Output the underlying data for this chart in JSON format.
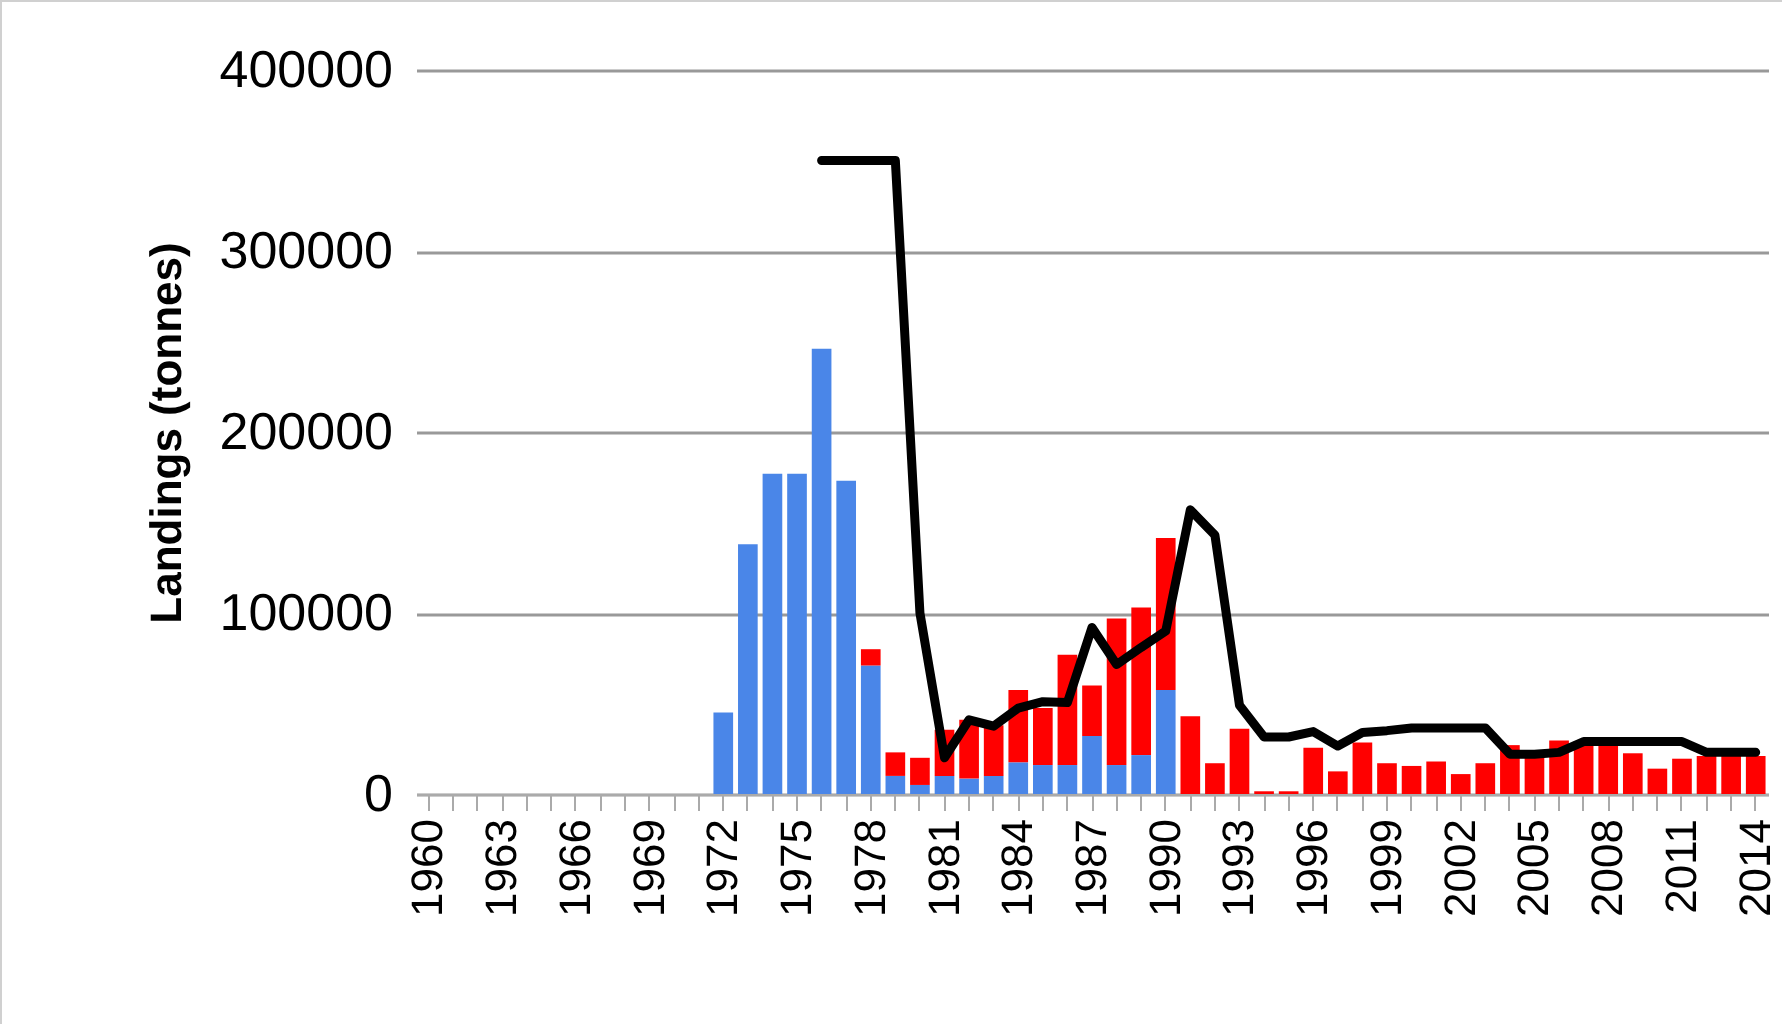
{
  "chart_data": {
    "type": "bar",
    "ylabel": "Landings (tonnes)",
    "stacked": true,
    "grid": "y",
    "legend": false,
    "categories": [
      "1960",
      null,
      null,
      "1963",
      null,
      null,
      "1966",
      null,
      null,
      "1969",
      null,
      null,
      "1972",
      null,
      null,
      "1975",
      null,
      null,
      "1978",
      null,
      null,
      "1981",
      null,
      null,
      "1984",
      null,
      null,
      "1987",
      null,
      null,
      "1990",
      null,
      null,
      "1993",
      null,
      null,
      "1996",
      null,
      null,
      "1999",
      null,
      null,
      "2002",
      null,
      null,
      "2005",
      null,
      null,
      "2008",
      null,
      null,
      "2011",
      null,
      null,
      "2014"
    ],
    "ylim": [
      0,
      400000
    ],
    "yticks": [
      0,
      100000,
      200000,
      300000,
      400000
    ],
    "series": [
      {
        "color": "#4a86e8",
        "values": [
          null,
          null,
          null,
          null,
          null,
          null,
          null,
          null,
          null,
          null,
          null,
          null,
          45000,
          138000,
          177000,
          177000,
          246000,
          173000,
          71000,
          10000,
          5000,
          10000,
          8500,
          10000,
          17500,
          16000,
          16000,
          32000,
          16000,
          21500,
          57500,
          null,
          null,
          null,
          null,
          null,
          null,
          null,
          null,
          null,
          null,
          null,
          null,
          null,
          null,
          null,
          null,
          null,
          null,
          null,
          null,
          null,
          null,
          null,
          null
        ]
      },
      {
        "color": "#ff0000",
        "values": [
          null,
          null,
          null,
          null,
          null,
          null,
          null,
          null,
          null,
          null,
          null,
          null,
          null,
          null,
          null,
          null,
          null,
          null,
          9000,
          13000,
          15000,
          25500,
          32500,
          28000,
          40000,
          31500,
          61000,
          28000,
          81000,
          81500,
          84000,
          43000,
          17000,
          36000,
          1500,
          1500,
          25500,
          12500,
          28500,
          17000,
          15500,
          18000,
          11000,
          17000,
          27000,
          21000,
          29500,
          26500,
          26500,
          22500,
          14000,
          19500,
          21000,
          21000,
          21000
        ]
      },
      {
        "type": "line",
        "color": "#000000",
        "values": [
          null,
          null,
          null,
          null,
          null,
          null,
          null,
          null,
          null,
          null,
          null,
          null,
          null,
          null,
          null,
          null,
          350000,
          350000,
          350000,
          350000,
          100000,
          20000,
          41000,
          37500,
          47500,
          51000,
          50500,
          92000,
          71500,
          81000,
          90000,
          157000,
          143000,
          49000,
          31500,
          31500,
          34500,
          26500,
          34000,
          35000,
          36500,
          36500,
          36500,
          36500,
          22000,
          22000,
          23000,
          29000,
          29000,
          29000,
          29000,
          29000,
          23000,
          23000,
          23000
        ]
      }
    ]
  }
}
